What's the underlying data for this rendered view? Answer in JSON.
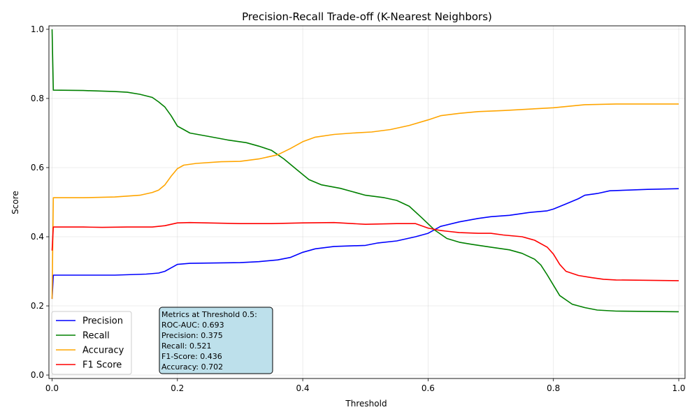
{
  "chart_data": {
    "type": "line",
    "title": "Precision-Recall Trade-off (K-Nearest Neighbors)",
    "xlabel": "Threshold",
    "ylabel": "Score",
    "xlim": [
      -0.005,
      1.01
    ],
    "ylim": [
      -0.01,
      1.01
    ],
    "xticks": [
      0.0,
      0.2,
      0.4,
      0.6,
      0.8,
      1.0
    ],
    "xtick_labels": [
      "0.0",
      "0.2",
      "0.4",
      "0.6",
      "0.8",
      "1.0"
    ],
    "yticks": [
      0.0,
      0.2,
      0.4,
      0.6,
      0.8,
      1.0
    ],
    "ytick_labels": [
      "0.0",
      "0.2",
      "0.4",
      "0.6",
      "0.8",
      "1.0"
    ],
    "grid": true,
    "legend_position": "lower-left",
    "series": [
      {
        "name": "Precision",
        "color": "#0000ff",
        "points": [
          [
            0.0,
            0.22
          ],
          [
            0.002,
            0.289
          ],
          [
            0.05,
            0.289
          ],
          [
            0.1,
            0.289
          ],
          [
            0.15,
            0.292
          ],
          [
            0.17,
            0.295
          ],
          [
            0.18,
            0.3
          ],
          [
            0.19,
            0.31
          ],
          [
            0.2,
            0.32
          ],
          [
            0.22,
            0.323
          ],
          [
            0.3,
            0.325
          ],
          [
            0.33,
            0.328
          ],
          [
            0.36,
            0.333
          ],
          [
            0.38,
            0.34
          ],
          [
            0.4,
            0.355
          ],
          [
            0.42,
            0.365
          ],
          [
            0.45,
            0.372
          ],
          [
            0.5,
            0.375
          ],
          [
            0.52,
            0.382
          ],
          [
            0.55,
            0.388
          ],
          [
            0.58,
            0.4
          ],
          [
            0.6,
            0.41
          ],
          [
            0.62,
            0.43
          ],
          [
            0.65,
            0.443
          ],
          [
            0.68,
            0.453
          ],
          [
            0.7,
            0.458
          ],
          [
            0.73,
            0.462
          ],
          [
            0.76,
            0.47
          ],
          [
            0.79,
            0.475
          ],
          [
            0.8,
            0.48
          ],
          [
            0.82,
            0.495
          ],
          [
            0.84,
            0.51
          ],
          [
            0.85,
            0.52
          ],
          [
            0.87,
            0.525
          ],
          [
            0.89,
            0.533
          ],
          [
            0.92,
            0.535
          ],
          [
            0.95,
            0.537
          ],
          [
            1.0,
            0.539
          ]
        ]
      },
      {
        "name": "Recall",
        "color": "#008000",
        "points": [
          [
            0.0,
            1.0
          ],
          [
            0.002,
            0.824
          ],
          [
            0.05,
            0.823
          ],
          [
            0.1,
            0.82
          ],
          [
            0.12,
            0.818
          ],
          [
            0.14,
            0.812
          ],
          [
            0.16,
            0.803
          ],
          [
            0.17,
            0.79
          ],
          [
            0.18,
            0.775
          ],
          [
            0.19,
            0.75
          ],
          [
            0.2,
            0.72
          ],
          [
            0.21,
            0.71
          ],
          [
            0.22,
            0.7
          ],
          [
            0.25,
            0.69
          ],
          [
            0.28,
            0.68
          ],
          [
            0.31,
            0.672
          ],
          [
            0.33,
            0.662
          ],
          [
            0.35,
            0.65
          ],
          [
            0.37,
            0.625
          ],
          [
            0.39,
            0.595
          ],
          [
            0.41,
            0.565
          ],
          [
            0.43,
            0.55
          ],
          [
            0.46,
            0.54
          ],
          [
            0.48,
            0.53
          ],
          [
            0.5,
            0.52
          ],
          [
            0.53,
            0.513
          ],
          [
            0.55,
            0.505
          ],
          [
            0.57,
            0.488
          ],
          [
            0.59,
            0.455
          ],
          [
            0.61,
            0.42
          ],
          [
            0.63,
            0.395
          ],
          [
            0.65,
            0.384
          ],
          [
            0.67,
            0.378
          ],
          [
            0.7,
            0.37
          ],
          [
            0.73,
            0.362
          ],
          [
            0.75,
            0.352
          ],
          [
            0.77,
            0.335
          ],
          [
            0.78,
            0.318
          ],
          [
            0.79,
            0.29
          ],
          [
            0.8,
            0.26
          ],
          [
            0.81,
            0.23
          ],
          [
            0.83,
            0.205
          ],
          [
            0.85,
            0.195
          ],
          [
            0.87,
            0.188
          ],
          [
            0.9,
            0.185
          ],
          [
            1.0,
            0.183
          ]
        ]
      },
      {
        "name": "Accuracy",
        "color": "#ffa500",
        "points": [
          [
            0.0,
            0.22
          ],
          [
            0.002,
            0.513
          ],
          [
            0.05,
            0.513
          ],
          [
            0.1,
            0.515
          ],
          [
            0.14,
            0.52
          ],
          [
            0.16,
            0.528
          ],
          [
            0.17,
            0.535
          ],
          [
            0.18,
            0.55
          ],
          [
            0.19,
            0.575
          ],
          [
            0.2,
            0.597
          ],
          [
            0.21,
            0.607
          ],
          [
            0.23,
            0.612
          ],
          [
            0.27,
            0.617
          ],
          [
            0.3,
            0.618
          ],
          [
            0.33,
            0.625
          ],
          [
            0.36,
            0.637
          ],
          [
            0.38,
            0.655
          ],
          [
            0.4,
            0.675
          ],
          [
            0.42,
            0.688
          ],
          [
            0.45,
            0.696
          ],
          [
            0.48,
            0.7
          ],
          [
            0.51,
            0.703
          ],
          [
            0.54,
            0.71
          ],
          [
            0.57,
            0.722
          ],
          [
            0.6,
            0.738
          ],
          [
            0.62,
            0.75
          ],
          [
            0.65,
            0.757
          ],
          [
            0.68,
            0.762
          ],
          [
            0.72,
            0.765
          ],
          [
            0.75,
            0.768
          ],
          [
            0.8,
            0.773
          ],
          [
            0.85,
            0.782
          ],
          [
            0.9,
            0.784
          ],
          [
            1.0,
            0.784
          ]
        ]
      },
      {
        "name": "F1 Score",
        "color": "#ff0000",
        "points": [
          [
            0.0,
            0.36
          ],
          [
            0.002,
            0.428
          ],
          [
            0.05,
            0.428
          ],
          [
            0.08,
            0.427
          ],
          [
            0.12,
            0.428
          ],
          [
            0.16,
            0.428
          ],
          [
            0.18,
            0.432
          ],
          [
            0.2,
            0.44
          ],
          [
            0.22,
            0.441
          ],
          [
            0.3,
            0.438
          ],
          [
            0.35,
            0.438
          ],
          [
            0.4,
            0.44
          ],
          [
            0.45,
            0.441
          ],
          [
            0.5,
            0.436
          ],
          [
            0.55,
            0.438
          ],
          [
            0.58,
            0.438
          ],
          [
            0.6,
            0.425
          ],
          [
            0.62,
            0.418
          ],
          [
            0.65,
            0.412
          ],
          [
            0.68,
            0.41
          ],
          [
            0.7,
            0.41
          ],
          [
            0.72,
            0.405
          ],
          [
            0.75,
            0.4
          ],
          [
            0.77,
            0.39
          ],
          [
            0.79,
            0.37
          ],
          [
            0.8,
            0.35
          ],
          [
            0.81,
            0.32
          ],
          [
            0.82,
            0.3
          ],
          [
            0.84,
            0.288
          ],
          [
            0.86,
            0.282
          ],
          [
            0.88,
            0.277
          ],
          [
            0.9,
            0.275
          ],
          [
            1.0,
            0.273
          ]
        ]
      }
    ],
    "annotation": {
      "lines": [
        "Metrics at Threshold 0.5:",
        "ROC-AUC: 0.693",
        "Precision: 0.375",
        "Recall: 0.521",
        "F1-Score: 0.436",
        "Accuracy: 0.702"
      ],
      "background": "#add8e6"
    }
  }
}
